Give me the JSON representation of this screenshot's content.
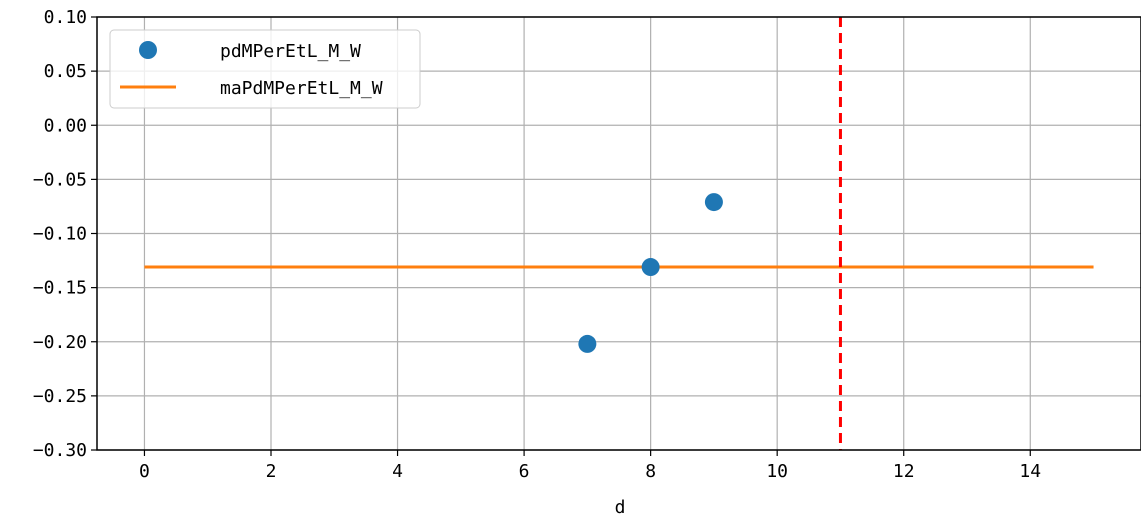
{
  "chart_data": {
    "type": "scatter",
    "xlabel": "d",
    "ylabel": "",
    "xlim": [
      -0.75,
      15.75
    ],
    "ylim": [
      -0.3,
      0.1
    ],
    "x_ticks": [
      0,
      2,
      4,
      6,
      8,
      10,
      12,
      14
    ],
    "x_tick_labels": [
      "0",
      "2",
      "4",
      "6",
      "8",
      "10",
      "12",
      "14"
    ],
    "y_ticks": [
      0.1,
      0.05,
      0.0,
      -0.05,
      -0.1,
      -0.15,
      -0.2,
      -0.25,
      -0.3
    ],
    "y_tick_labels": [
      "0.10",
      "0.05",
      "0.00",
      "−0.05",
      "−0.10",
      "−0.15",
      "−0.20",
      "−0.25",
      "−0.30"
    ],
    "grid": true,
    "legend_position": "top-left",
    "series": [
      {
        "name": "pdMPerEtL_M_W",
        "kind": "scatter",
        "color": "#1f77b4",
        "x": [
          7,
          8,
          9
        ],
        "y": [
          -0.202,
          -0.131,
          -0.071
        ]
      },
      {
        "name": "maPdMPerEtL_M_W",
        "kind": "line",
        "color": "#ff7f0e",
        "x": [
          0,
          15
        ],
        "y": [
          -0.131,
          -0.131
        ]
      }
    ],
    "vlines": [
      {
        "x": 11,
        "color": "#ff0000",
        "style": "dashed"
      }
    ]
  }
}
